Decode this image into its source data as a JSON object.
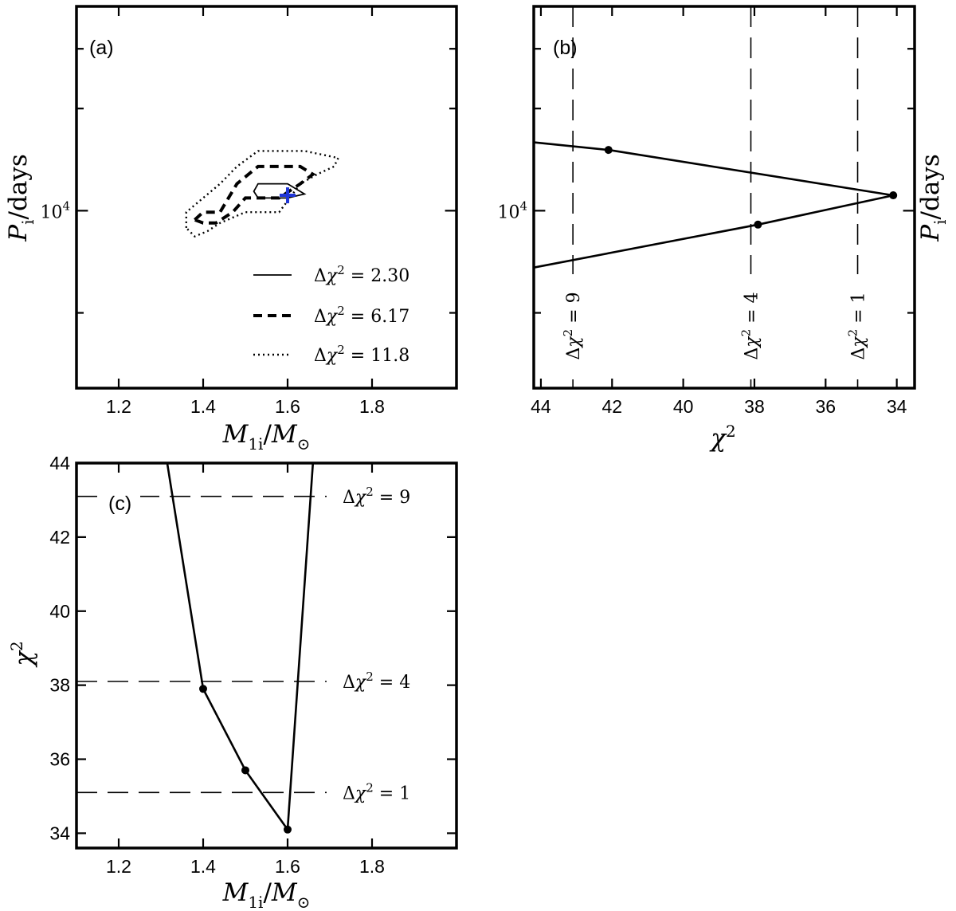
{
  "chart_data": [
    {
      "panel": "(a)",
      "type": "contour",
      "xlabel": "M_1i/M_⊙",
      "ylabel": "P_i/days",
      "xlim": [
        1.1,
        2.0
      ],
      "xticks": [
        1.2,
        1.4,
        1.6,
        1.8
      ],
      "xtick_labels": [
        "1.2",
        "1.4",
        "1.6",
        "1.8"
      ],
      "ylog": true,
      "ylim": [
        3000,
        40000
      ],
      "ytick_labels": [
        "10^4"
      ],
      "best_fit": {
        "x": 1.6,
        "y": 11100,
        "color": "#1f35d8"
      },
      "legend": {
        "placement": "lower right",
        "entries": [
          "Δχ² = 2.30",
          "Δχ² = 6.17",
          "Δχ² = 11.8"
        ]
      },
      "series": [
        {
          "name": "Δχ² = 2.30",
          "style": "solid",
          "points": [
            [
              1.53,
              12000
            ],
            [
              1.6,
              12000
            ],
            [
              1.64,
              11200
            ],
            [
              1.6,
              10900
            ],
            [
              1.53,
              10900
            ],
            [
              1.52,
              11400
            ]
          ]
        },
        {
          "name": "Δχ² = 6.17",
          "style": "dashed",
          "points": [
            [
              1.38,
              9400
            ],
            [
              1.4,
              9900
            ],
            [
              1.44,
              9900
            ],
            [
              1.48,
              12000
            ],
            [
              1.53,
              13500
            ],
            [
              1.63,
              13500
            ],
            [
              1.66,
              12800
            ],
            [
              1.63,
              12000
            ],
            [
              1.58,
              10900
            ],
            [
              1.5,
              10900
            ],
            [
              1.47,
              9900
            ],
            [
              1.43,
              9200
            ],
            [
              1.4,
              9200
            ]
          ]
        },
        {
          "name": "Δχ² = 11.8",
          "style": "dotted",
          "points": [
            [
              1.36,
              8900
            ],
            [
              1.36,
              9900
            ],
            [
              1.4,
              10900
            ],
            [
              1.44,
              12000
            ],
            [
              1.48,
              13500
            ],
            [
              1.53,
              15000
            ],
            [
              1.64,
              15000
            ],
            [
              1.72,
              14300
            ],
            [
              1.71,
              13500
            ],
            [
              1.67,
              12800
            ],
            [
              1.63,
              12000
            ],
            [
              1.58,
              9900
            ],
            [
              1.5,
              9900
            ],
            [
              1.44,
              9200
            ],
            [
              1.41,
              8700
            ],
            [
              1.38,
              8400
            ]
          ]
        }
      ]
    },
    {
      "panel": "(b)",
      "type": "line",
      "xlabel": "χ²",
      "ylabel": "P_i/days",
      "xlim": [
        44.2,
        33.5
      ],
      "xticks": [
        44,
        42,
        40,
        38,
        36,
        34
      ],
      "xtick_labels": [
        "44",
        "42",
        "40",
        "38",
        "36",
        "34"
      ],
      "ylog": true,
      "ylim": [
        3000,
        40000
      ],
      "ytick_labels": [
        "10^4"
      ],
      "points": [
        [
          44.2,
          15900
        ],
        [
          42.1,
          15100
        ],
        [
          34.1,
          11100
        ],
        [
          37.9,
          9100
        ],
        [
          44.2,
          6800
        ]
      ],
      "markers": [
        [
          42.1,
          15100
        ],
        [
          34.1,
          11100
        ],
        [
          37.9,
          9100
        ]
      ],
      "vlines": [
        {
          "x": 43.1,
          "label": "Δχ² = 9"
        },
        {
          "x": 38.1,
          "label": "Δχ² = 4"
        },
        {
          "x": 35.1,
          "label": "Δχ² = 1"
        }
      ]
    },
    {
      "panel": "(c)",
      "type": "line",
      "xlabel": "M_1i/M_⊙",
      "ylabel": "χ²",
      "xlim": [
        1.1,
        2.0
      ],
      "ylim": [
        33.6,
        44.0
      ],
      "xticks": [
        1.2,
        1.4,
        1.6,
        1.8
      ],
      "xtick_labels": [
        "1.2",
        "1.4",
        "1.6",
        "1.8"
      ],
      "yticks": [
        34,
        36,
        38,
        40,
        42,
        44
      ],
      "ytick_labels": [
        "34",
        "36",
        "38",
        "40",
        "42",
        "44"
      ],
      "points": [
        [
          1.315,
          44.0
        ],
        [
          1.4,
          37.9
        ],
        [
          1.5,
          35.7
        ],
        [
          1.6,
          34.1
        ],
        [
          1.66,
          44.0
        ]
      ],
      "markers": [
        [
          1.4,
          37.9
        ],
        [
          1.5,
          35.7
        ],
        [
          1.6,
          34.1
        ]
      ],
      "hlines": [
        {
          "y": 43.1,
          "label": "Δχ² = 9"
        },
        {
          "y": 38.1,
          "label": "Δχ² = 4"
        },
        {
          "y": 35.1,
          "label": "Δχ² = 1"
        }
      ]
    }
  ]
}
